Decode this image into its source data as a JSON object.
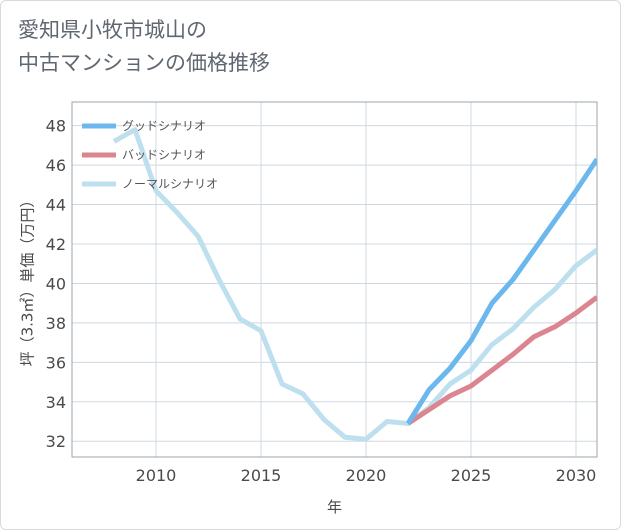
{
  "title": {
    "line1": "愛知県小牧市城山の",
    "line2": "中古マンションの価格推移"
  },
  "colors": {
    "good": "#6cb8ee",
    "bad": "#da858f",
    "normal": "#bee0ee",
    "grid": "#cfd8e0",
    "frame": "#9aa4ad"
  },
  "chart_data": {
    "type": "line",
    "xlabel": "年",
    "ylabel": "坪（3.3㎡）単価（万円）",
    "xlim": [
      2006,
      2031
    ],
    "ylim": [
      31.2,
      49.2
    ],
    "xticks": [
      2010,
      2015,
      2020,
      2025,
      2030
    ],
    "yticks": [
      32,
      34,
      36,
      38,
      40,
      42,
      44,
      46,
      48
    ],
    "grid": true,
    "legend_position": "top-left",
    "series": [
      {
        "name": "グッドシナリオ",
        "color_key": "good",
        "x": [
          2022,
          2023,
          2024,
          2025,
          2026,
          2027,
          2028,
          2029,
          2030,
          2031
        ],
        "y": [
          32.9,
          34.6,
          35.7,
          37.1,
          39.0,
          40.2,
          41.7,
          43.2,
          44.7,
          46.3
        ]
      },
      {
        "name": "バッドシナリオ",
        "color_key": "bad",
        "x": [
          2022,
          2023,
          2024,
          2025,
          2026,
          2027,
          2028,
          2029,
          2030,
          2031
        ],
        "y": [
          32.9,
          33.6,
          34.3,
          34.8,
          35.6,
          36.4,
          37.3,
          37.8,
          38.5,
          39.3
        ]
      },
      {
        "name": "ノーマルシナリオ",
        "color_key": "normal",
        "x": [
          2008,
          2009,
          2010,
          2011,
          2012,
          2013,
          2014,
          2015,
          2016,
          2017,
          2018,
          2019,
          2020,
          2021,
          2022,
          2023,
          2024,
          2025,
          2026,
          2027,
          2028,
          2029,
          2030,
          2031
        ],
        "y": [
          47.2,
          47.8,
          44.7,
          43.6,
          42.4,
          40.2,
          38.2,
          37.6,
          34.9,
          34.4,
          33.1,
          32.2,
          32.1,
          33.0,
          32.9,
          33.7,
          34.9,
          35.6,
          36.9,
          37.7,
          38.8,
          39.7,
          40.9,
          41.7
        ]
      }
    ]
  }
}
